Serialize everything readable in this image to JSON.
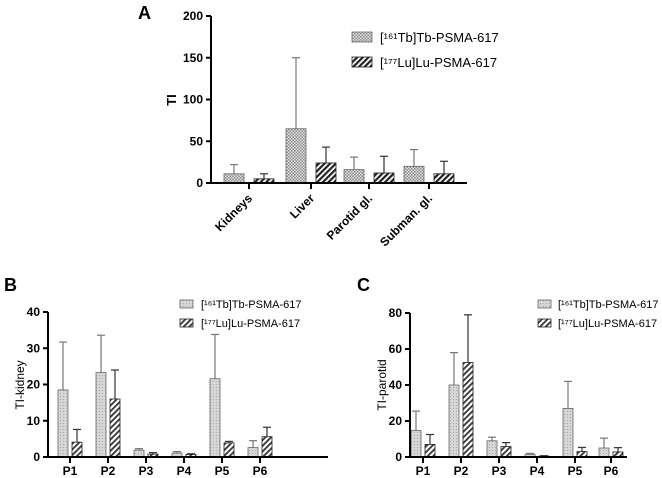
{
  "chart_data": [
    {
      "panel": "A",
      "type": "bar",
      "ylabel": "TI",
      "ylim": [
        0,
        200
      ],
      "yticks": [
        "0",
        "50",
        "100",
        "150",
        "200"
      ],
      "categories": [
        "Kidneys",
        "Liver",
        "Parotid gl.",
        "Subman. gl."
      ],
      "legend_position": "top-right",
      "series": [
        {
          "name": "[¹⁶¹Tb]Tb-PSMA-617",
          "pattern": "checkered",
          "color": "#bdbdbd",
          "values": [
            11,
            65,
            16,
            20
          ],
          "error_upper": [
            22,
            150,
            31,
            40
          ]
        },
        {
          "name": "[¹⁷⁷Lu]Lu-PSMA-617",
          "pattern": "dense-diagonal",
          "color": "#333333",
          "values": [
            5,
            24,
            12,
            11
          ],
          "error_upper": [
            11,
            43,
            32,
            26
          ]
        }
      ]
    },
    {
      "panel": "B",
      "type": "bar",
      "ylabel": "TI-kidney",
      "ylim": [
        0,
        40
      ],
      "yticks": [
        "0",
        "10",
        "20",
        "30",
        "40"
      ],
      "categories": [
        "P1",
        "P2",
        "P3",
        "P4",
        "P5",
        "P6"
      ],
      "legend_position": "top-right",
      "series": [
        {
          "name": "[¹⁶¹Tb]Tb-PSMA-617",
          "pattern": "light-dotted",
          "color": "#d0d0d0",
          "values": [
            18.5,
            23.3,
            1.9,
            1.1,
            21.6,
            2.6
          ],
          "error_upper": [
            31.7,
            33.6,
            2.3,
            1.5,
            33.8,
            4.5
          ]
        },
        {
          "name": "[¹⁷⁷Lu]Lu-PSMA-617",
          "pattern": "diagonal-hatch",
          "color": "#444444",
          "values": [
            4.1,
            16.0,
            0.8,
            0.7,
            3.9,
            5.6
          ],
          "error_upper": [
            7.6,
            24.0,
            1.2,
            0.9,
            4.3,
            8.2
          ]
        }
      ]
    },
    {
      "panel": "C",
      "type": "bar",
      "ylabel": "TI-parotid",
      "ylim": [
        0,
        80
      ],
      "yticks": [
        "0",
        "20",
        "40",
        "60",
        "80"
      ],
      "categories": [
        "P1",
        "P2",
        "P3",
        "P4",
        "P5",
        "P6"
      ],
      "legend_position": "top-right",
      "series": [
        {
          "name": "[¹⁶¹Tb]Tb-PSMA-617",
          "pattern": "light-dotted",
          "color": "#d0d0d0",
          "values": [
            14.8,
            40,
            9,
            1.5,
            27,
            5
          ],
          "error_upper": [
            25.5,
            58,
            11,
            2,
            42,
            10.5
          ]
        },
        {
          "name": "[¹⁷⁷Lu]Lu-PSMA-617",
          "pattern": "diagonal-hatch",
          "color": "#444444",
          "values": [
            7,
            52.5,
            5.8,
            0.5,
            3,
            2.8
          ],
          "error_upper": [
            12.5,
            79,
            8,
            0.7,
            5.3,
            5.2
          ]
        }
      ]
    }
  ]
}
